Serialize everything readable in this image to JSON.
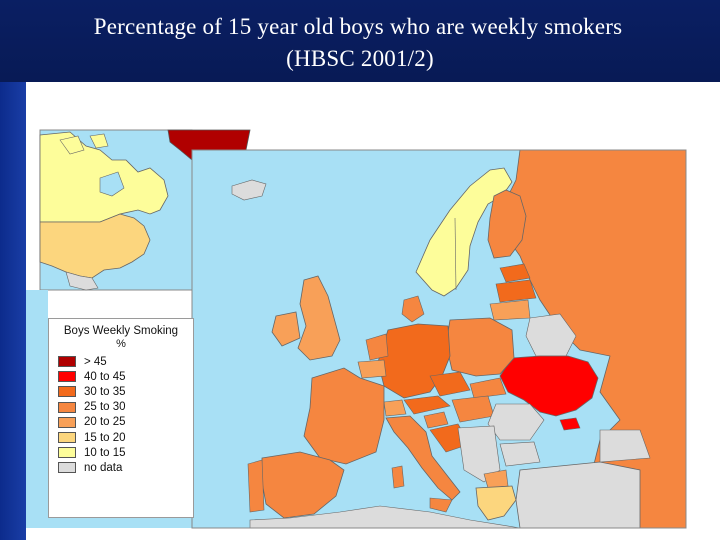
{
  "slide": {
    "title_line1": "Percentage of 15 year old boys who are weekly smokers",
    "title_line2": "(HBSC 2001/2)"
  },
  "legend": {
    "title": "Boys Weekly Smoking",
    "unit": "%",
    "items": [
      {
        "label": "> 45",
        "color": "#b00000"
      },
      {
        "label": "40 to 45",
        "color": "#ff0000"
      },
      {
        "label": "30 to 35",
        "color": "#f26a1c"
      },
      {
        "label": "25 to 30",
        "color": "#f58640"
      },
      {
        "label": "20 to 25",
        "color": "#f8a058"
      },
      {
        "label": "15 to 20",
        "color": "#fcd67e"
      },
      {
        "label": "10 to 15",
        "color": "#fdfd9a"
      },
      {
        "label": "no data",
        "color": "#dcdcdc"
      }
    ]
  },
  "colors": {
    "sea": "#a8e0f5",
    "title_bg": "#0a1f63",
    "side_band": "#1a3ea6"
  }
}
